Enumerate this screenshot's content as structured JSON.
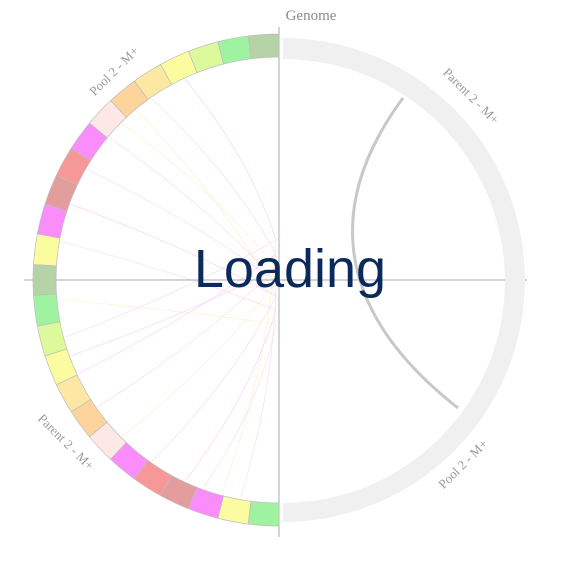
{
  "diagram": {
    "title": "Genome",
    "loading_text": "Loading",
    "labels": {
      "pool_top": "Pool 2 - M+",
      "parent_top_right": "Parent 2 - M+",
      "parent_left": "Parent 2 - M+",
      "pool_bottom_right": "Pool 2 - M+"
    },
    "colors": {
      "axis": "#a8a8a8",
      "ring_gray": "#f0f0f0",
      "arc_gray": "#c8c8c8",
      "segment_border": "#bdbdbd",
      "title_text": "#0b2a5c"
    },
    "segment_colors": [
      "#b5d3a6",
      "#9ff29f",
      "#dcf99c",
      "#fbfb9f",
      "#fde8a3",
      "#fcd49c",
      "#fde8e6",
      "#fb8cfb",
      "#f69898",
      "#e39d9d",
      "#fb8cfb",
      "#fbfb9f",
      "#b5d3a6",
      "#9ff29f",
      "#dcf99c",
      "#fbfb9f",
      "#fde8a3",
      "#fcd49c",
      "#fde8e6",
      "#fb8cfb",
      "#f69898",
      "#e39d9d",
      "#fb8cfb",
      "#fbfb9f",
      "#9ff29f"
    ],
    "chord_colors": [
      "#f4b3f4",
      "#f7c9c9",
      "#fbe7a8",
      "#e9c6f5"
    ]
  }
}
